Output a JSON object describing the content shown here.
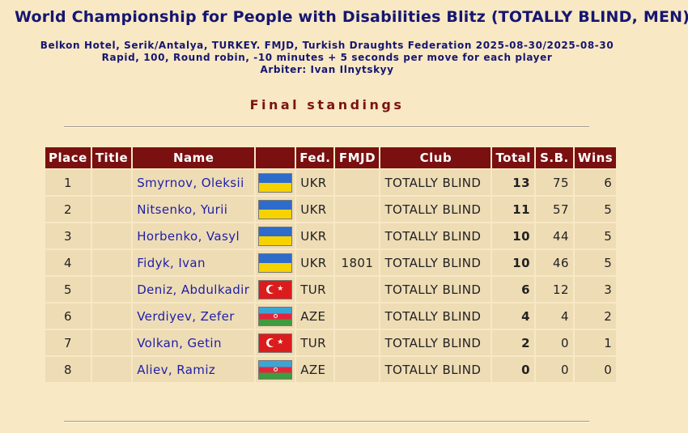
{
  "header": {
    "title": "World Championship for People with Disabilities Blitz (TOTALLY BLIND, MEN)",
    "info_line1": "Belkon Hotel, Serik/Antalya, TURKEY. FMJD, Turkish Draughts Federation 2025-08-30/2025-08-30",
    "info_line2": "Rapid, 100, Round robin, -10 minutes + 5 seconds per move for each player",
    "info_line3": "Arbiter: Ivan Ilnytskyy",
    "section_title": "Final standings"
  },
  "table": {
    "columns": [
      "Place",
      "Title",
      "Name",
      "",
      "Fed.",
      "FMJD",
      "Club",
      "Total",
      "S.B.",
      "Wins"
    ],
    "rows": [
      {
        "place": "1",
        "title": "",
        "name": "Smyrnov, Oleksii",
        "flag_icon": "ukraine-flag-icon",
        "fed": "UKR",
        "fmjd": "",
        "club": "TOTALLY BLIND",
        "total": "13",
        "sb": "75",
        "wins": "6"
      },
      {
        "place": "2",
        "title": "",
        "name": "Nitsenko, Yurii",
        "flag_icon": "ukraine-flag-icon",
        "fed": "UKR",
        "fmjd": "",
        "club": "TOTALLY BLIND",
        "total": "11",
        "sb": "57",
        "wins": "5"
      },
      {
        "place": "3",
        "title": "",
        "name": "Horbenko, Vasyl",
        "flag_icon": "ukraine-flag-icon",
        "fed": "UKR",
        "fmjd": "",
        "club": "TOTALLY BLIND",
        "total": "10",
        "sb": "44",
        "wins": "5"
      },
      {
        "place": "4",
        "title": "",
        "name": "Fidyk, Ivan",
        "flag_icon": "ukraine-flag-icon",
        "fed": "UKR",
        "fmjd": "1801",
        "club": "TOTALLY BLIND",
        "total": "10",
        "sb": "46",
        "wins": "5"
      },
      {
        "place": "5",
        "title": "",
        "name": "Deniz, Abdulkadir",
        "flag_icon": "turkey-flag-icon",
        "fed": "TUR",
        "fmjd": "",
        "club": "TOTALLY BLIND",
        "total": "6",
        "sb": "12",
        "wins": "3"
      },
      {
        "place": "6",
        "title": "",
        "name": "Verdiyev, Zefer",
        "flag_icon": "azerbaijan-flag-icon",
        "fed": "AZE",
        "fmjd": "",
        "club": "TOTALLY BLIND",
        "total": "4",
        "sb": "4",
        "wins": "2"
      },
      {
        "place": "7",
        "title": "",
        "name": "Volkan, Getin",
        "flag_icon": "turkey-flag-icon",
        "fed": "TUR",
        "fmjd": "",
        "club": "TOTALLY BLIND",
        "total": "2",
        "sb": "0",
        "wins": "1"
      },
      {
        "place": "8",
        "title": "",
        "name": "Aliev, Ramiz",
        "flag_icon": "azerbaijan-flag-icon",
        "fed": "AZE",
        "fmjd": "",
        "club": "TOTALLY BLIND",
        "total": "0",
        "sb": "0",
        "wins": "0"
      }
    ]
  },
  "colors": {
    "background": "#f8e8c4",
    "header_bg": "#7a1010",
    "row_bg": "#eedcb5",
    "title_color": "#161670",
    "section_title_color": "#7a1410",
    "name_link_color": "#1e1ea8"
  }
}
